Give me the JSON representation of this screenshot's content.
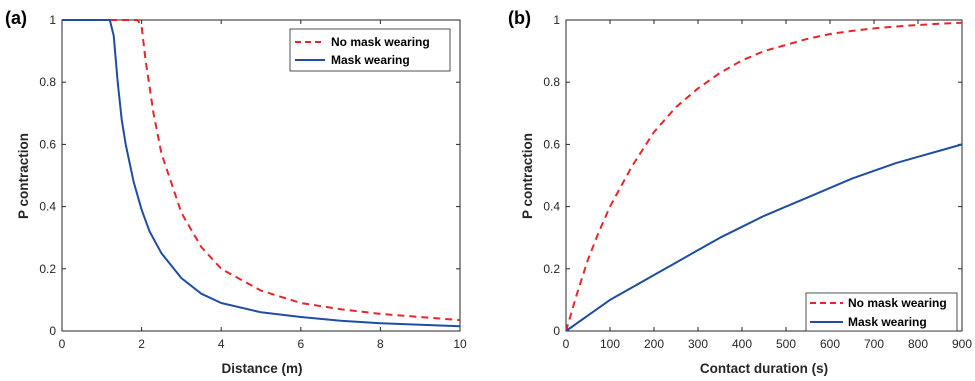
{
  "chart_data": [
    {
      "type": "line",
      "panel_label": "(a)",
      "xlabel": "Distance (m)",
      "ylabel": "P contraction",
      "xlim": [
        0,
        10
      ],
      "ylim": [
        0,
        1
      ],
      "xticks": [
        "0",
        "2",
        "4",
        "6",
        "8",
        "10"
      ],
      "yticks": [
        "0",
        "0.2",
        "0.4",
        "0.6",
        "0.8",
        "1"
      ],
      "grid": false,
      "legend_position": "top-right",
      "series": [
        {
          "name": "No mask wearing",
          "color": "#e8262a",
          "style": "dashed",
          "x": [
            0,
            1.5,
            1.9,
            2.0,
            2.1,
            2.3,
            2.5,
            3,
            3.5,
            4,
            5,
            6,
            7,
            8,
            9,
            10
          ],
          "y": [
            1,
            1,
            1,
            0.98,
            0.87,
            0.7,
            0.57,
            0.38,
            0.27,
            0.2,
            0.13,
            0.09,
            0.07,
            0.055,
            0.045,
            0.035
          ]
        },
        {
          "name": "Mask wearing",
          "color": "#1f4ea1",
          "style": "solid",
          "x": [
            0,
            1.0,
            1.2,
            1.3,
            1.4,
            1.5,
            1.6,
            1.8,
            2.0,
            2.2,
            2.5,
            3,
            3.5,
            4,
            5,
            6,
            7,
            8,
            9,
            10
          ],
          "y": [
            1,
            1,
            1,
            0.95,
            0.8,
            0.68,
            0.6,
            0.48,
            0.39,
            0.32,
            0.25,
            0.17,
            0.12,
            0.09,
            0.06,
            0.045,
            0.033,
            0.025,
            0.02,
            0.015
          ]
        }
      ]
    },
    {
      "type": "line",
      "panel_label": "(b)",
      "xlabel": "Contact duration (s)",
      "ylabel": "P contraction",
      "xlim": [
        0,
        900
      ],
      "ylim": [
        0,
        1
      ],
      "xticks": [
        "0",
        "100",
        "200",
        "300",
        "400",
        "500",
        "600",
        "700",
        "800",
        "900"
      ],
      "yticks": [
        "0",
        "0.2",
        "0.4",
        "0.6",
        "0.8",
        "1"
      ],
      "grid": false,
      "legend_position": "bottom-right",
      "series": [
        {
          "name": "No mask wearing",
          "color": "#e8262a",
          "style": "dashed",
          "x": [
            0,
            25,
            50,
            75,
            100,
            150,
            200,
            250,
            300,
            350,
            400,
            450,
            500,
            550,
            600,
            650,
            700,
            750,
            800,
            850,
            900
          ],
          "y": [
            0,
            0.12,
            0.23,
            0.32,
            0.4,
            0.53,
            0.64,
            0.72,
            0.78,
            0.83,
            0.87,
            0.9,
            0.92,
            0.94,
            0.955,
            0.965,
            0.973,
            0.979,
            0.984,
            0.988,
            0.991
          ]
        },
        {
          "name": "Mask wearing",
          "color": "#1f4ea1",
          "style": "solid",
          "x": [
            0,
            50,
            100,
            150,
            200,
            250,
            300,
            350,
            400,
            450,
            500,
            550,
            600,
            650,
            700,
            750,
            800,
            850,
            900
          ],
          "y": [
            0,
            0.05,
            0.1,
            0.14,
            0.18,
            0.22,
            0.26,
            0.3,
            0.335,
            0.37,
            0.4,
            0.43,
            0.46,
            0.49,
            0.515,
            0.54,
            0.56,
            0.58,
            0.6
          ]
        }
      ]
    }
  ]
}
